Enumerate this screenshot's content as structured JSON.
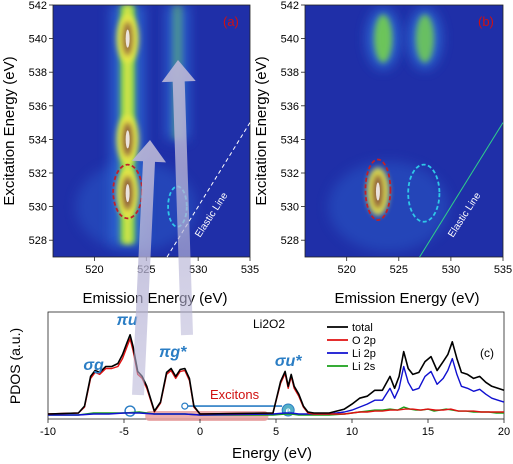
{
  "colors": {
    "map_background": "#1f2fa8",
    "map_mid": "#2f6fd8",
    "map_green": "#7ddc3c",
    "map_yellow": "#e8e84a",
    "map_peak": "#8b5a3a",
    "panel_label": "#d01010",
    "dashed_red": "#c0202a",
    "dashed_cyan": "#2fc8e8",
    "elastic_line": "#ffffff",
    "arrow_fill": "#b7b4d6",
    "orbital_label": "#2a7dc4",
    "exciton_bar": "#e8a0a0",
    "exciton_text": "#d01010",
    "total": "#000000",
    "O2p": "#e01010",
    "Li2p": "#1010d0",
    "Li2s": "#1aa01a"
  },
  "chart_data": [
    {
      "type": "heatmap",
      "panel_label": "(a)",
      "xlabel": "Emission Energy (eV)",
      "ylabel": "Excitation Energy (eV)",
      "xlim": [
        516,
        535
      ],
      "ylim": [
        527,
        542
      ],
      "xticks": [
        520,
        525,
        530,
        535
      ],
      "yticks": [
        528,
        530,
        532,
        534,
        536,
        538,
        540,
        542
      ],
      "annotations": [
        "Elastic Line"
      ],
      "features": [
        {
          "kind": "vertical_band",
          "x": 523.2,
          "y_range": [
            527.8,
            542
          ],
          "intensity": 0.9
        },
        {
          "kind": "vertical_band",
          "x": 528.0,
          "y_range": [
            534,
            542
          ],
          "intensity": 0.35
        },
        {
          "kind": "peak",
          "x": 523.2,
          "y": 530.8,
          "intensity": 1.0
        },
        {
          "kind": "peak",
          "x": 523.2,
          "y": 534.0,
          "intensity": 0.95
        },
        {
          "kind": "peak",
          "x": 523.2,
          "y": 540.0,
          "intensity": 0.85
        }
      ],
      "marked_regions": [
        {
          "color": "red",
          "center": [
            523.2,
            530.9
          ],
          "rx": 1.4,
          "ry": 1.6
        },
        {
          "color": "cyan",
          "center": [
            528.0,
            530.0
          ],
          "rx": 0.9,
          "ry": 1.2
        }
      ]
    },
    {
      "type": "heatmap",
      "panel_label": "(b)",
      "xlabel": "Emission Energy (eV)",
      "ylabel": "Excitation Energy (eV)",
      "xlim": [
        516,
        535
      ],
      "ylim": [
        527,
        542
      ],
      "xticks": [
        520,
        525,
        530,
        535
      ],
      "yticks": [
        528,
        530,
        532,
        534,
        536,
        538,
        540,
        542
      ],
      "annotations": [
        "Elastic Line"
      ],
      "features": [
        {
          "kind": "blob",
          "x": 523.5,
          "y": 540.0,
          "intensity": 0.5
        },
        {
          "kind": "blob",
          "x": 527.5,
          "y": 540.0,
          "intensity": 0.45
        },
        {
          "kind": "peak",
          "x": 523.0,
          "y": 530.9,
          "intensity": 1.0
        }
      ],
      "marked_regions": [
        {
          "color": "red",
          "center": [
            523.0,
            531.0
          ],
          "rx": 1.2,
          "ry": 1.8
        },
        {
          "color": "cyan",
          "center": [
            527.4,
            530.8
          ],
          "rx": 1.5,
          "ry": 1.7
        }
      ]
    },
    {
      "type": "line",
      "panel_label": "(c)",
      "title": "Li2O2",
      "xlabel": "Energy (eV)",
      "ylabel": "PDOS (a.u.)",
      "xlim": [
        -10,
        20
      ],
      "xticks": [
        -10,
        -5,
        0,
        5,
        10,
        15,
        20
      ],
      "ylim": [
        0,
        1
      ],
      "legend": {
        "position": "top-right",
        "items": [
          "total",
          "O 2p",
          "Li 2p",
          "Li 2s"
        ]
      },
      "orbital_labels": [
        {
          "text": "σg",
          "x": -7.0
        },
        {
          "text": "πu",
          "x": -4.8
        },
        {
          "text": "πg*",
          "x": -1.8
        },
        {
          "text": "σu*",
          "x": 5.8
        }
      ],
      "annotations": [
        "Excitons",
        "e"
      ],
      "series": [
        {
          "name": "total",
          "x": [
            -10,
            -8,
            -7.6,
            -7.2,
            -6.9,
            -6.6,
            -6.2,
            -5.8,
            -5.4,
            -5.1,
            -4.8,
            -4.6,
            -4.4,
            -4.1,
            -3.8,
            -3.5,
            -3.0,
            -2.6,
            -2.2,
            -1.9,
            -1.6,
            -1.3,
            -1.0,
            -0.7,
            -0.4,
            0,
            4.8,
            5.3,
            5.6,
            5.8,
            6.0,
            6.2,
            6.5,
            6.8,
            7.1,
            7.5,
            8.5,
            9.5,
            10.0,
            10.5,
            11.0,
            11.5,
            12.0,
            12.5,
            12.8,
            13.1,
            13.4,
            13.7,
            14.0,
            14.4,
            14.8,
            15.2,
            15.6,
            16.0,
            16.3,
            16.6,
            16.9,
            17.2,
            17.6,
            18.0,
            18.4,
            18.8,
            19.2,
            19.6,
            20
          ],
          "y": [
            0.02,
            0.03,
            0.1,
            0.4,
            0.46,
            0.44,
            0.5,
            0.5,
            0.53,
            0.62,
            0.74,
            0.82,
            0.7,
            0.45,
            0.4,
            0.3,
            0.05,
            0.14,
            0.44,
            0.48,
            0.4,
            0.47,
            0.48,
            0.38,
            0.1,
            0.02,
            0.03,
            0.35,
            0.45,
            0.3,
            0.42,
            0.3,
            0.22,
            0.1,
            0.04,
            0.03,
            0.03,
            0.07,
            0.12,
            0.18,
            0.2,
            0.26,
            0.26,
            0.4,
            0.28,
            0.4,
            0.65,
            0.48,
            0.42,
            0.44,
            0.55,
            0.6,
            0.46,
            0.55,
            0.62,
            0.75,
            0.58,
            0.44,
            0.42,
            0.38,
            0.4,
            0.34,
            0.3,
            0.28,
            0.26
          ]
        },
        {
          "name": "O 2p",
          "x": [
            -10,
            -8,
            -7.6,
            -7.2,
            -6.9,
            -6.6,
            -6.2,
            -5.8,
            -5.4,
            -5.1,
            -4.8,
            -4.6,
            -4.4,
            -4.1,
            -3.8,
            -3.5,
            -3.0,
            -2.6,
            -2.2,
            -1.9,
            -1.6,
            -1.3,
            -1.0,
            -0.7,
            -0.4,
            0,
            4.8,
            5.3,
            5.6,
            5.8,
            6.0,
            6.2,
            6.5,
            6.8,
            7.1,
            7.5,
            8.5,
            9.5,
            10.0,
            10.5,
            11.0,
            11.5,
            12.0,
            12.5,
            13.0,
            13.5,
            14.0,
            14.5,
            15.0,
            15.5,
            16.0,
            16.5,
            17.0,
            17.5,
            18.0,
            18.5,
            19.0,
            19.5,
            20
          ],
          "y": [
            0.02,
            0.03,
            0.09,
            0.38,
            0.44,
            0.42,
            0.48,
            0.48,
            0.5,
            0.58,
            0.7,
            0.78,
            0.66,
            0.42,
            0.38,
            0.28,
            0.04,
            0.13,
            0.42,
            0.46,
            0.38,
            0.45,
            0.46,
            0.36,
            0.09,
            0.02,
            0.03,
            0.33,
            0.43,
            0.28,
            0.4,
            0.28,
            0.2,
            0.09,
            0.03,
            0.02,
            0.02,
            0.02,
            0.03,
            0.04,
            0.04,
            0.05,
            0.05,
            0.06,
            0.06,
            0.07,
            0.07,
            0.06,
            0.07,
            0.06,
            0.06,
            0.07,
            0.05,
            0.05,
            0.05,
            0.04,
            0.04,
            0.04,
            0.04
          ]
        },
        {
          "name": "Li 2p",
          "x": [
            -10,
            -8,
            -7,
            -6,
            -5,
            -4,
            -3,
            -2,
            -1,
            0,
            4.8,
            5.6,
            6.0,
            6.5,
            7.5,
            8.5,
            9.5,
            10.0,
            10.5,
            11.0,
            11.5,
            12.0,
            12.5,
            12.8,
            13.1,
            13.4,
            13.7,
            14.0,
            14.4,
            14.8,
            15.2,
            15.6,
            16.0,
            16.3,
            16.6,
            16.9,
            17.2,
            17.6,
            18.0,
            18.4,
            18.8,
            19.2,
            19.6,
            20
          ],
          "y": [
            0.01,
            0.01,
            0.02,
            0.02,
            0.03,
            0.03,
            0.02,
            0.02,
            0.02,
            0.01,
            0.02,
            0.03,
            0.03,
            0.02,
            0.02,
            0.02,
            0.04,
            0.06,
            0.09,
            0.12,
            0.16,
            0.16,
            0.28,
            0.18,
            0.28,
            0.5,
            0.34,
            0.26,
            0.28,
            0.4,
            0.45,
            0.32,
            0.38,
            0.46,
            0.58,
            0.42,
            0.3,
            0.28,
            0.25,
            0.27,
            0.22,
            0.18,
            0.16,
            0.14
          ]
        },
        {
          "name": "Li 2s",
          "x": [
            -10,
            -8,
            -7,
            -6,
            -5,
            -4,
            -3,
            -2,
            -1,
            0,
            4.8,
            5.6,
            6.0,
            6.5,
            7.5,
            8.5,
            9.5,
            10.0,
            10.5,
            11.0,
            11.5,
            12.0,
            12.5,
            13.0,
            13.4,
            13.8,
            14.2,
            14.6,
            15.0,
            15.4,
            15.8,
            16.2,
            16.6,
            17.0,
            17.5,
            18.0,
            18.5,
            19.0,
            19.5,
            20
          ],
          "y": [
            0.01,
            0.01,
            0.03,
            0.03,
            0.03,
            0.04,
            0.02,
            0.02,
            0.02,
            0.01,
            0.01,
            0.02,
            0.02,
            0.01,
            0.01,
            0.01,
            0.02,
            0.03,
            0.04,
            0.05,
            0.06,
            0.06,
            0.07,
            0.06,
            0.09,
            0.07,
            0.06,
            0.06,
            0.07,
            0.05,
            0.06,
            0.07,
            0.06,
            0.05,
            0.05,
            0.04,
            0.04,
            0.04,
            0.03,
            0.03
          ]
        }
      ]
    }
  ]
}
